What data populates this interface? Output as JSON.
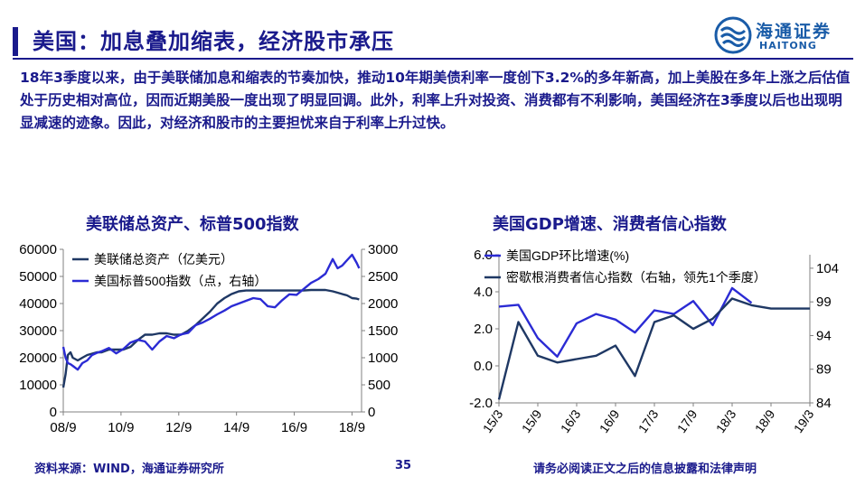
{
  "header": {
    "title": "美国：加息叠加缩表，经济股市承压",
    "logo_cn": "海通证券",
    "logo_en": "HAITONG"
  },
  "summary": "18年3季度以来，由于美联储加息和缩表的节奏加快，推动10年期美债利率一度创下3.2%的多年新高，加上美股在多年上涨之后估值处于历史相对高位，因而近期美股一度出现了明显回调。此外，利率上升对投资、消费都有不利影响，美国经济在3季度以后也出现明显减速的迹象。因此，对经济和股市的主要担忧来自于利率上升过快。",
  "colors": {
    "primary": "#1a1a8c",
    "series_dark": "#1f3864",
    "series_blue": "#2b2bd4"
  },
  "chart_data": [
    {
      "type": "line",
      "title": "美联储总资产、标普500指数",
      "x_ticks": [
        "08/9",
        "10/9",
        "12/9",
        "14/9",
        "16/9",
        "18/9"
      ],
      "x": [
        2008.67,
        2008.75,
        2008.83,
        2008.92,
        2009.0,
        2009.17,
        2009.33,
        2009.5,
        2009.67,
        2009.83,
        2010.0,
        2010.25,
        2010.5,
        2010.75,
        2011.0,
        2011.25,
        2011.5,
        2011.75,
        2012.0,
        2012.25,
        2012.5,
        2012.75,
        2013.0,
        2013.25,
        2013.5,
        2013.75,
        2014.0,
        2014.25,
        2014.5,
        2014.75,
        2015.0,
        2015.25,
        2015.5,
        2015.75,
        2016.0,
        2016.25,
        2016.5,
        2016.75,
        2017.0,
        2017.25,
        2017.5,
        2017.75,
        2018.0,
        2018.17,
        2018.33,
        2018.5,
        2018.67,
        2018.83,
        2018.92
      ],
      "ylim": [
        0,
        60000
      ],
      "y2lim": [
        0,
        3000
      ],
      "y_ticks": [
        0,
        10000,
        20000,
        30000,
        40000,
        50000,
        60000
      ],
      "y2_ticks": [
        0,
        500,
        1000,
        1500,
        2000,
        2500,
        3000
      ],
      "legend_position": "top-left",
      "series": [
        {
          "name": "美联储总资产（亿美元）",
          "axis": "left",
          "color": "#1f3864",
          "values": [
            9000,
            14000,
            21000,
            22000,
            20000,
            19000,
            20000,
            21000,
            21500,
            22000,
            22000,
            23000,
            23000,
            23000,
            24000,
            26500,
            28500,
            28500,
            29000,
            29000,
            28500,
            28500,
            30000,
            32000,
            34500,
            37000,
            40000,
            42000,
            43500,
            44500,
            44800,
            44800,
            44800,
            44800,
            44800,
            44800,
            44800,
            44800,
            44800,
            45000,
            45000,
            45000,
            44500,
            44000,
            43500,
            43000,
            42000,
            41800,
            41500
          ]
        },
        {
          "name": "美国标普500指数（点，右轴）",
          "axis": "right",
          "color": "#2b2bd4",
          "values": [
            1200,
            1000,
            900,
            880,
            850,
            780,
            900,
            950,
            1050,
            1090,
            1120,
            1180,
            1080,
            1160,
            1280,
            1330,
            1300,
            1150,
            1300,
            1400,
            1360,
            1430,
            1460,
            1600,
            1650,
            1720,
            1800,
            1870,
            1950,
            2000,
            2050,
            2100,
            2080,
            1950,
            1930,
            2060,
            2170,
            2160,
            2270,
            2380,
            2450,
            2550,
            2820,
            2650,
            2700,
            2800,
            2900,
            2750,
            2650
          ]
        }
      ]
    },
    {
      "type": "line",
      "title": "美国GDP增速、消费者信心指数",
      "x_ticks": [
        "15/3",
        "15/9",
        "16/3",
        "16/9",
        "17/3",
        "17/9",
        "18/3",
        "18/9",
        "19/3"
      ],
      "x": [
        2015.0,
        2015.25,
        2015.5,
        2015.75,
        2016.0,
        2016.25,
        2016.5,
        2016.75,
        2017.0,
        2017.25,
        2017.5,
        2017.75,
        2018.0,
        2018.25,
        2018.5,
        2018.75,
        2019.0
      ],
      "ylim": [
        -2.0,
        6.0
      ],
      "y2lim": [
        84,
        106
      ],
      "y_ticks": [
        "-2.0",
        "0.0",
        "2.0",
        "4.0",
        "6.0"
      ],
      "y2_ticks": [
        84,
        89,
        94,
        99,
        104
      ],
      "legend_position": "top-left",
      "series": [
        {
          "name": "美国GDP环比增速(%)",
          "axis": "left",
          "color": "#2b2bd4",
          "values": [
            3.2,
            3.3,
            1.5,
            0.5,
            2.3,
            2.8,
            2.5,
            1.8,
            3.0,
            2.8,
            3.5,
            2.2,
            4.2,
            3.4,
            null,
            null,
            null
          ]
        },
        {
          "name": "密歇根消费者信心指数（右轴，领先1个季度）",
          "axis": "right",
          "color": "#1f3864",
          "values": [
            84.5,
            96.0,
            91.0,
            90.0,
            90.5,
            91.0,
            92.5,
            88.0,
            96.0,
            97.0,
            95.0,
            96.5,
            99.5,
            98.5,
            98.0,
            98.0,
            98.0
          ]
        }
      ]
    }
  ],
  "footer": {
    "source": "资料来源：WIND，海通证券研究所",
    "page": "35",
    "disclaimer": "请务必阅读正文之后的信息披露和法律声明"
  }
}
